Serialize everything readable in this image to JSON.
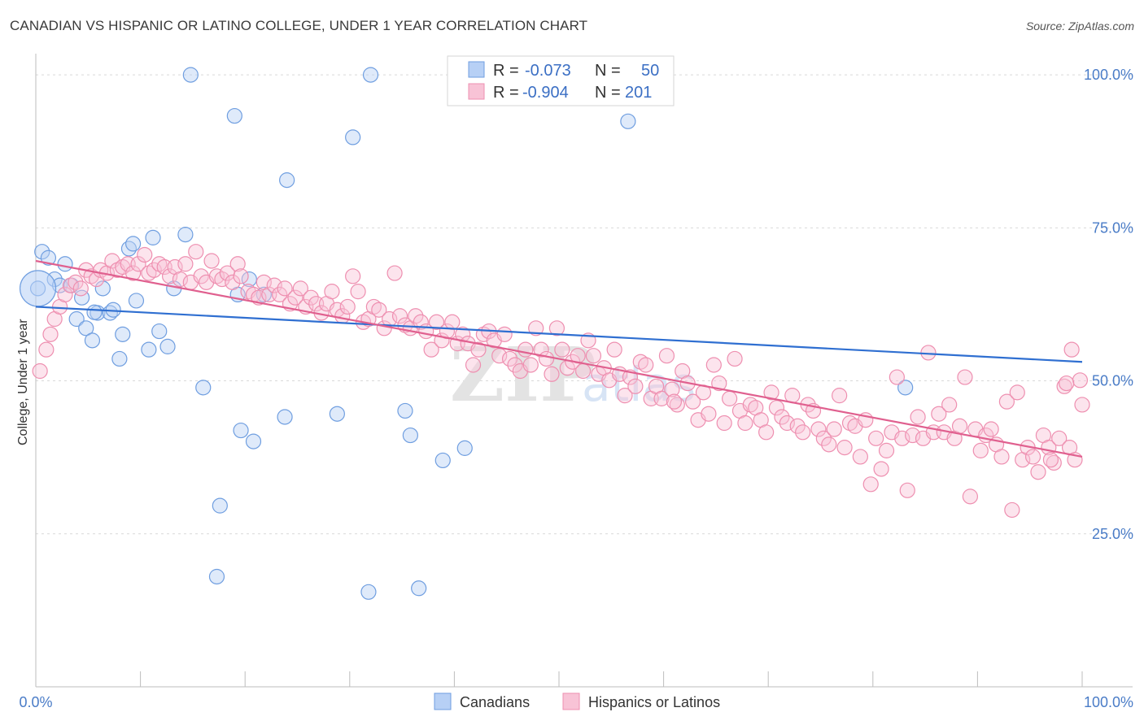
{
  "title": "CANADIAN VS HISPANIC OR LATINO COLLEGE, UNDER 1 YEAR CORRELATION CHART",
  "source": "Source: ZipAtlas.com",
  "watermark": "ZIPatlas",
  "colors": {
    "canadians_fill": "#b7d0f5",
    "canadians_stroke": "#6f9ee0",
    "canadians_line": "#2f6fd1",
    "hispanic_fill": "#f8c3d6",
    "hispanic_stroke": "#ee8fb0",
    "hispanic_line": "#e0608f",
    "axis_text": "#4a7cc7",
    "grid": "#d9d9d9"
  },
  "legend": {
    "rows": [
      {
        "r_label": "R =",
        "r_value": "-0.073",
        "n_label": "N =",
        "n_value": "50"
      },
      {
        "r_label": "R =",
        "r_value": "-0.904",
        "n_label": "N =",
        "n_value": "201"
      }
    ]
  },
  "bottom_legend": [
    "Canadians",
    "Hispanics or Latinos"
  ],
  "chart_data": {
    "type": "scatter",
    "title": "CANADIAN VS HISPANIC OR LATINO COLLEGE, UNDER 1 YEAR CORRELATION CHART",
    "xlabel": "",
    "ylabel": "College, Under 1 year",
    "xlim": [
      0,
      100
    ],
    "ylim": [
      0,
      104
    ],
    "x_tick_labels": [
      "0.0%",
      "100.0%"
    ],
    "y_ticks": [
      25,
      50,
      75,
      100
    ],
    "y_tick_labels": [
      "25.0%",
      "50.0%",
      "75.0%",
      "100.0%"
    ],
    "grid": true,
    "series": [
      {
        "name": "Canadians",
        "r": -0.073,
        "n": 50,
        "trend": {
          "x": [
            0,
            100
          ],
          "y": [
            62.1,
            53.1
          ]
        },
        "points": [
          [
            0.6,
            71.1
          ],
          [
            1.2,
            70.1
          ],
          [
            1.8,
            66.6
          ],
          [
            2.3,
            65.6
          ],
          [
            2.8,
            69.1
          ],
          [
            3.4,
            65.6
          ],
          [
            3.9,
            60.1
          ],
          [
            4.4,
            63.6
          ],
          [
            4.8,
            58.6
          ],
          [
            5.4,
            56.6
          ],
          [
            5.9,
            61.1
          ],
          [
            6.4,
            65.1
          ],
          [
            7.1,
            61.1
          ],
          [
            7.4,
            61.6
          ],
          [
            8.0,
            53.6
          ],
          [
            8.3,
            57.6
          ],
          [
            8.9,
            71.6
          ],
          [
            9.3,
            72.4
          ],
          [
            9.6,
            63.1
          ],
          [
            10.8,
            55.1
          ],
          [
            11.2,
            73.4
          ],
          [
            11.8,
            58.1
          ],
          [
            12.6,
            55.6
          ],
          [
            13.2,
            65.1
          ],
          [
            14.3,
            73.9
          ],
          [
            14.8,
            100.0
          ],
          [
            16.0,
            48.9
          ],
          [
            17.3,
            18.0
          ],
          [
            17.6,
            29.6
          ],
          [
            19.0,
            93.3
          ],
          [
            19.3,
            64.1
          ],
          [
            19.6,
            41.9
          ],
          [
            20.4,
            66.6
          ],
          [
            20.8,
            40.1
          ],
          [
            21.8,
            64.1
          ],
          [
            23.8,
            44.1
          ],
          [
            24.0,
            82.8
          ],
          [
            28.8,
            44.6
          ],
          [
            30.3,
            89.8
          ],
          [
            31.8,
            15.5
          ],
          [
            32.0,
            100.0
          ],
          [
            35.3,
            45.1
          ],
          [
            35.8,
            41.1
          ],
          [
            36.6,
            16.1
          ],
          [
            38.9,
            37.0
          ],
          [
            41.0,
            39.0
          ],
          [
            0.2,
            65.1
          ],
          [
            5.6,
            61.2
          ],
          [
            56.6,
            92.4
          ],
          [
            83.1,
            48.9
          ]
        ]
      },
      {
        "name": "Hispanics or Latinos",
        "r": -0.904,
        "n": 201,
        "trend": {
          "x": [
            0,
            100
          ],
          "y": [
            69.6,
            37.6
          ]
        },
        "points": [
          [
            0.4,
            51.6
          ],
          [
            1.0,
            55.1
          ],
          [
            1.4,
            57.6
          ],
          [
            1.8,
            60.1
          ],
          [
            2.3,
            62.1
          ],
          [
            2.8,
            64.1
          ],
          [
            3.3,
            65.6
          ],
          [
            3.8,
            66.1
          ],
          [
            4.3,
            65.1
          ],
          [
            4.8,
            68.1
          ],
          [
            5.3,
            67.1
          ],
          [
            5.8,
            66.6
          ],
          [
            6.2,
            68.1
          ],
          [
            6.8,
            67.6
          ],
          [
            7.3,
            69.6
          ],
          [
            7.8,
            68.1
          ],
          [
            8.3,
            68.6
          ],
          [
            8.8,
            69.1
          ],
          [
            9.3,
            67.6
          ],
          [
            9.8,
            69.1
          ],
          [
            10.4,
            70.6
          ],
          [
            10.8,
            67.6
          ],
          [
            11.3,
            68.1
          ],
          [
            11.8,
            69.1
          ],
          [
            12.3,
            68.6
          ],
          [
            12.8,
            67.1
          ],
          [
            13.3,
            68.6
          ],
          [
            13.8,
            66.6
          ],
          [
            14.3,
            69.1
          ],
          [
            14.8,
            66.1
          ],
          [
            15.3,
            71.1
          ],
          [
            15.8,
            67.1
          ],
          [
            16.3,
            66.1
          ],
          [
            16.8,
            69.6
          ],
          [
            17.3,
            67.1
          ],
          [
            17.8,
            66.6
          ],
          [
            18.3,
            67.6
          ],
          [
            18.8,
            66.1
          ],
          [
            19.3,
            69.1
          ],
          [
            19.6,
            67.1
          ],
          [
            20.3,
            64.6
          ],
          [
            20.8,
            64.1
          ],
          [
            21.3,
            63.6
          ],
          [
            21.8,
            66.1
          ],
          [
            22.3,
            64.1
          ],
          [
            22.8,
            65.6
          ],
          [
            23.3,
            64.1
          ],
          [
            23.8,
            65.1
          ],
          [
            24.3,
            62.6
          ],
          [
            24.8,
            63.6
          ],
          [
            25.3,
            65.1
          ],
          [
            25.8,
            62.1
          ],
          [
            26.3,
            63.6
          ],
          [
            26.8,
            62.6
          ],
          [
            27.3,
            61.1
          ],
          [
            27.8,
            62.6
          ],
          [
            28.3,
            64.6
          ],
          [
            28.8,
            61.6
          ],
          [
            29.3,
            60.6
          ],
          [
            29.8,
            62.1
          ],
          [
            30.3,
            67.1
          ],
          [
            30.8,
            64.6
          ],
          [
            31.3,
            59.6
          ],
          [
            31.8,
            60.1
          ],
          [
            32.3,
            62.1
          ],
          [
            32.8,
            61.6
          ],
          [
            33.3,
            58.6
          ],
          [
            33.8,
            60.1
          ],
          [
            34.3,
            67.6
          ],
          [
            34.8,
            60.6
          ],
          [
            35.3,
            59.1
          ],
          [
            35.8,
            58.6
          ],
          [
            36.3,
            60.6
          ],
          [
            36.8,
            59.6
          ],
          [
            37.3,
            58.1
          ],
          [
            37.8,
            55.1
          ],
          [
            38.3,
            59.6
          ],
          [
            38.8,
            56.6
          ],
          [
            39.3,
            58.1
          ],
          [
            39.8,
            59.6
          ],
          [
            40.3,
            56.1
          ],
          [
            40.8,
            57.6
          ],
          [
            41.3,
            56.1
          ],
          [
            41.8,
            52.6
          ],
          [
            42.3,
            55.1
          ],
          [
            42.8,
            57.6
          ],
          [
            43.3,
            58.1
          ],
          [
            43.8,
            56.6
          ],
          [
            44.3,
            54.1
          ],
          [
            44.8,
            57.6
          ],
          [
            45.3,
            53.6
          ],
          [
            45.8,
            52.6
          ],
          [
            46.3,
            51.6
          ],
          [
            46.8,
            55.1
          ],
          [
            47.3,
            52.6
          ],
          [
            47.8,
            58.6
          ],
          [
            48.3,
            55.1
          ],
          [
            48.8,
            53.6
          ],
          [
            49.3,
            51.1
          ],
          [
            49.8,
            58.6
          ],
          [
            50.3,
            55.1
          ],
          [
            50.8,
            52.1
          ],
          [
            51.3,
            53.1
          ],
          [
            51.8,
            54.1
          ],
          [
            52.3,
            51.6
          ],
          [
            52.8,
            56.6
          ],
          [
            53.3,
            54.1
          ],
          [
            53.8,
            51.1
          ],
          [
            54.3,
            52.1
          ],
          [
            54.8,
            50.1
          ],
          [
            55.3,
            55.1
          ],
          [
            55.8,
            51.1
          ],
          [
            56.3,
            47.6
          ],
          [
            56.8,
            50.6
          ],
          [
            57.3,
            49.1
          ],
          [
            57.8,
            53.1
          ],
          [
            58.3,
            52.6
          ],
          [
            58.8,
            47.1
          ],
          [
            59.3,
            49.1
          ],
          [
            59.8,
            47.1
          ],
          [
            60.3,
            54.1
          ],
          [
            60.8,
            48.6
          ],
          [
            61.3,
            46.1
          ],
          [
            61.8,
            51.6
          ],
          [
            62.3,
            49.6
          ],
          [
            62.8,
            46.6
          ],
          [
            63.3,
            43.6
          ],
          [
            63.8,
            48.1
          ],
          [
            64.3,
            44.6
          ],
          [
            64.8,
            52.6
          ],
          [
            65.3,
            49.6
          ],
          [
            65.8,
            43.1
          ],
          [
            66.3,
            47.1
          ],
          [
            66.8,
            53.6
          ],
          [
            67.3,
            45.1
          ],
          [
            67.8,
            43.1
          ],
          [
            68.3,
            46.1
          ],
          [
            68.8,
            45.6
          ],
          [
            69.3,
            43.6
          ],
          [
            69.8,
            41.6
          ],
          [
            70.3,
            48.1
          ],
          [
            70.8,
            45.6
          ],
          [
            71.3,
            44.1
          ],
          [
            71.8,
            43.1
          ],
          [
            72.3,
            47.6
          ],
          [
            72.8,
            42.6
          ],
          [
            73.3,
            41.6
          ],
          [
            73.8,
            46.1
          ],
          [
            74.3,
            45.1
          ],
          [
            74.8,
            42.1
          ],
          [
            75.3,
            40.6
          ],
          [
            75.8,
            39.6
          ],
          [
            76.3,
            42.1
          ],
          [
            76.8,
            47.6
          ],
          [
            77.3,
            39.1
          ],
          [
            77.8,
            43.1
          ],
          [
            78.3,
            42.6
          ],
          [
            78.8,
            37.6
          ],
          [
            79.3,
            43.6
          ],
          [
            79.8,
            33.1
          ],
          [
            80.3,
            40.6
          ],
          [
            80.8,
            35.6
          ],
          [
            81.3,
            38.6
          ],
          [
            81.8,
            41.6
          ],
          [
            82.3,
            50.6
          ],
          [
            82.8,
            40.6
          ],
          [
            83.3,
            32.1
          ],
          [
            83.8,
            41.1
          ],
          [
            84.3,
            44.1
          ],
          [
            84.8,
            40.6
          ],
          [
            85.3,
            54.6
          ],
          [
            85.8,
            41.6
          ],
          [
            86.3,
            44.6
          ],
          [
            86.8,
            41.6
          ],
          [
            87.3,
            46.1
          ],
          [
            87.8,
            40.6
          ],
          [
            88.3,
            42.6
          ],
          [
            88.8,
            50.6
          ],
          [
            89.3,
            31.1
          ],
          [
            89.8,
            42.1
          ],
          [
            90.3,
            38.6
          ],
          [
            90.8,
            41.1
          ],
          [
            91.3,
            42.1
          ],
          [
            91.8,
            39.6
          ],
          [
            92.3,
            37.6
          ],
          [
            92.8,
            46.6
          ],
          [
            93.3,
            28.9
          ],
          [
            93.8,
            48.1
          ],
          [
            94.3,
            37.1
          ],
          [
            94.8,
            39.1
          ],
          [
            95.3,
            37.6
          ],
          [
            95.8,
            35.1
          ],
          [
            96.3,
            41.1
          ],
          [
            96.8,
            39.1
          ],
          [
            97.3,
            36.6
          ],
          [
            97.8,
            40.6
          ],
          [
            98.3,
            49.1
          ],
          [
            98.8,
            39.1
          ],
          [
            99.3,
            37.1
          ],
          [
            99.8,
            50.1
          ],
          [
            100.0,
            46.1
          ],
          [
            99.0,
            55.1
          ],
          [
            98.5,
            49.6
          ],
          [
            97.0,
            37.1
          ],
          [
            61.0,
            46.6
          ]
        ]
      }
    ]
  }
}
